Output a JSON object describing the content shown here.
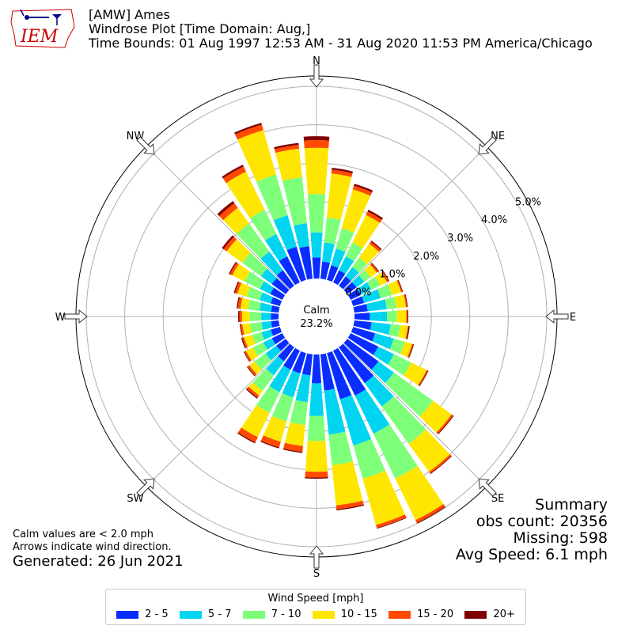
{
  "header": {
    "line1": "[AMW] Ames",
    "line2": "Windrose Plot [Time Domain: Aug,]",
    "line3": "Time Bounds: 01 Aug 1997 12:53 AM - 31 Aug 2020 11:53 PM America/Chicago",
    "logo_text": "IEM"
  },
  "summary": {
    "title": "Summary",
    "obs_count": "obs count: 20356",
    "missing": "Missing: 598",
    "avg_speed": "Avg Speed: 6.1 mph"
  },
  "notes": {
    "calm_note": "Calm values are < 2.0 mph",
    "arrow_note": "Arrows indicate wind direction.",
    "generated": "Generated: 26 Jun 2021"
  },
  "center": {
    "label": "Calm",
    "value": "23.2%"
  },
  "legend": {
    "title": "Wind Speed [mph]",
    "items": [
      {
        "label": "2 - 5",
        "color": "#0a2dff"
      },
      {
        "label": "5 - 7",
        "color": "#00d4f0"
      },
      {
        "label": "7 - 10",
        "color": "#7dff7a"
      },
      {
        "label": "10 - 15",
        "color": "#ffe600"
      },
      {
        "label": "15 - 20",
        "color": "#ff4a00"
      },
      {
        "label": "20+",
        "color": "#800000"
      }
    ]
  },
  "chart_data": {
    "type": "windrose",
    "calm_percent": 23.2,
    "radial_unit": "%",
    "radial_ticks": [
      "0.0%",
      "1.0%",
      "2.0%",
      "3.0%",
      "4.0%",
      "5.0%"
    ],
    "radial_range": [
      0,
      5.6
    ],
    "grid": true,
    "compass_labels": [
      "N",
      "NE",
      "E",
      "SE",
      "S",
      "SW",
      "W",
      "NW"
    ],
    "bins": [
      "2 - 5",
      "5 - 7",
      "7 - 10",
      "10 - 15",
      "15 - 20",
      "20+"
    ],
    "directions": [
      0,
      10,
      20,
      30,
      40,
      50,
      60,
      70,
      80,
      90,
      100,
      110,
      120,
      130,
      140,
      150,
      160,
      170,
      180,
      190,
      200,
      210,
      220,
      230,
      240,
      250,
      260,
      270,
      280,
      290,
      300,
      310,
      320,
      330,
      340,
      350
    ],
    "cumulative_percent": [
      [
        0.55,
        1.2,
        2.2,
        3.4,
        3.6,
        3.7
      ],
      [
        0.45,
        0.95,
        1.6,
        2.75,
        2.85,
        2.9
      ],
      [
        0.4,
        0.85,
        1.4,
        2.45,
        2.55,
        2.6
      ],
      [
        0.35,
        0.75,
        1.15,
        1.95,
        2.05,
        2.1
      ],
      [
        0.3,
        0.6,
        0.9,
        1.35,
        1.42,
        1.45
      ],
      [
        0.3,
        0.55,
        0.75,
        0.95,
        1.0,
        1.02
      ],
      [
        0.3,
        0.6,
        0.85,
        1.05,
        1.1,
        1.12
      ],
      [
        0.3,
        0.75,
        1.05,
        1.3,
        1.33,
        1.35
      ],
      [
        0.35,
        0.85,
        1.1,
        1.35,
        1.38,
        1.4
      ],
      [
        0.4,
        0.85,
        1.1,
        1.35,
        1.38,
        1.4
      ],
      [
        0.45,
        0.95,
        1.2,
        1.4,
        1.42,
        1.45
      ],
      [
        0.6,
        1.1,
        1.4,
        1.6,
        1.63,
        1.65
      ],
      [
        0.8,
        1.25,
        1.75,
        2.2,
        2.23,
        2.25
      ],
      [
        1.0,
        1.5,
        2.75,
        3.35,
        3.4,
        3.42
      ],
      [
        1.15,
        1.9,
        3.1,
        4.0,
        4.05,
        4.07
      ],
      [
        1.3,
        2.4,
        3.7,
        4.9,
        4.98,
        5.0
      ],
      [
        1.25,
        2.5,
        3.4,
        4.65,
        4.73,
        4.75
      ],
      [
        0.95,
        2.1,
        2.9,
        3.95,
        4.05,
        4.08
      ],
      [
        0.75,
        1.6,
        2.25,
        3.05,
        3.2,
        3.23
      ],
      [
        0.55,
        1.25,
        1.85,
        2.4,
        2.55,
        2.58
      ],
      [
        0.55,
        1.2,
        1.85,
        2.4,
        2.55,
        2.58
      ],
      [
        0.55,
        1.2,
        1.8,
        2.5,
        2.65,
        2.68
      ],
      [
        0.45,
        0.9,
        1.4,
        1.55,
        1.62,
        1.65
      ],
      [
        0.3,
        0.65,
        1.0,
        1.17,
        1.23,
        1.25
      ],
      [
        0.3,
        0.55,
        0.85,
        1.05,
        1.1,
        1.12
      ],
      [
        0.25,
        0.5,
        0.75,
        0.97,
        1.02,
        1.05
      ],
      [
        0.2,
        0.45,
        0.75,
        0.95,
        1.0,
        1.02
      ],
      [
        0.2,
        0.45,
        0.75,
        0.95,
        1.02,
        1.05
      ],
      [
        0.2,
        0.5,
        0.8,
        1.0,
        1.07,
        1.1
      ],
      [
        0.25,
        0.55,
        0.9,
        1.15,
        1.22,
        1.25
      ],
      [
        0.35,
        0.65,
        1.1,
        1.45,
        1.52,
        1.55
      ],
      [
        0.45,
        0.8,
        1.4,
        1.9,
        2.0,
        2.05
      ],
      [
        0.5,
        1.1,
        2.0,
        2.5,
        2.65,
        2.72
      ],
      [
        0.75,
        1.4,
        2.1,
        3.2,
        3.35,
        3.4
      ],
      [
        0.9,
        1.75,
        2.85,
        4.05,
        4.2,
        4.25
      ],
      [
        0.85,
        1.45,
        2.65,
        3.4,
        3.5,
        3.55
      ]
    ]
  }
}
